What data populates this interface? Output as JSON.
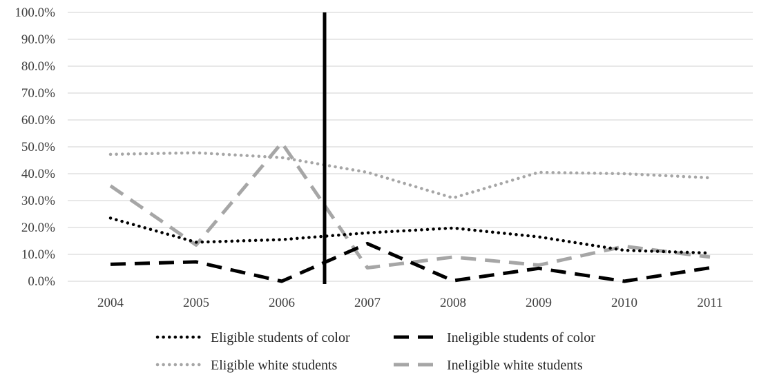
{
  "chart_data": {
    "type": "line",
    "title": "",
    "xlabel": "",
    "ylabel": "",
    "categories": [
      "2004",
      "2005",
      "2006",
      "2007",
      "2008",
      "2009",
      "2010",
      "2011"
    ],
    "ylim": [
      0,
      100
    ],
    "y_ticks": [
      "0.0%",
      "10.0%",
      "20.0%",
      "30.0%",
      "40.0%",
      "50.0%",
      "60.0%",
      "70.0%",
      "80.0%",
      "90.0%",
      "100.0%"
    ],
    "grid": "horizontal",
    "legend_position": "bottom",
    "reference_line": {
      "between": [
        "2006",
        "2007"
      ],
      "color": "#000000"
    },
    "series": [
      {
        "name": "Eligible students of color",
        "values": [
          23.5,
          14.5,
          15.5,
          18.0,
          19.8,
          16.5,
          11.5,
          10.5
        ],
        "color": "#000000",
        "style": "dotted"
      },
      {
        "name": "Ineligible students of color",
        "values": [
          6.3,
          7.2,
          0.0,
          14.0,
          0.2,
          4.8,
          0.0,
          5.0
        ],
        "color": "#000000",
        "style": "dashed"
      },
      {
        "name": "Eligible white students",
        "values": [
          47.2,
          47.8,
          46.0,
          40.5,
          31.0,
          40.5,
          40.0,
          38.5
        ],
        "color": "#a6a6a6",
        "style": "dotted"
      },
      {
        "name": "Ineligible white students",
        "values": [
          35.5,
          13.5,
          51.5,
          5.0,
          9.0,
          6.0,
          13.0,
          9.0
        ],
        "color": "#a6a6a6",
        "style": "dashed"
      }
    ]
  }
}
